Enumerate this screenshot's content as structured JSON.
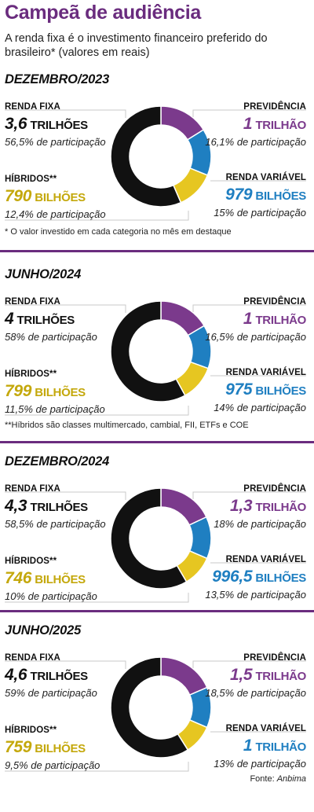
{
  "title": "Campeã de audiência",
  "subtitle": "A renda fixa é o investimento financeiro preferido do brasileiro* (valores em reais)",
  "footnotes": {
    "one": "* O valor investido em cada categoria no mês em destaque",
    "two": "**Híbridos são classes multimercado, cambial, FII, ETFs e COE"
  },
  "source": {
    "prefix": "Fonte:",
    "name": "Anbima"
  },
  "colors": {
    "renda_fixa": "#111111",
    "previdencia": "#7b3a8c",
    "renda_variavel": "#1f7fc1",
    "hibridos": "#e6c621",
    "divider": "#6a2c7e"
  },
  "labels": {
    "renda_fixa": "RENDA FIXA",
    "previdencia": "PREVIDÊNCIA",
    "hibridos": "HÍBRIDOS**",
    "renda_variavel": "RENDA VARIÁVEL"
  },
  "chart_data": [
    {
      "type": "pie",
      "title": "DEZEMBRO/2023",
      "categories": [
        "Previdência",
        "Renda variável",
        "Híbridos",
        "Renda fixa"
      ],
      "values": [
        16.1,
        15,
        12.4,
        56.5
      ],
      "display": {
        "renda_fixa": {
          "num": "3,6",
          "unit": "TRILHÕES",
          "pct": "56,5% de participação"
        },
        "previdencia": {
          "num": "1",
          "unit": "TRILHÃO",
          "pct": "16,1% de participação"
        },
        "hibridos": {
          "num": "790",
          "unit": "BILHÕES",
          "pct": "12,4% de participação"
        },
        "renda_variavel": {
          "num": "979",
          "unit": "BILHÕES",
          "pct": "15% de participação"
        }
      }
    },
    {
      "type": "pie",
      "title": "JUNHO/2024",
      "categories": [
        "Previdência",
        "Renda variável",
        "Híbridos",
        "Renda fixa"
      ],
      "values": [
        16.5,
        14,
        11.5,
        58
      ],
      "display": {
        "renda_fixa": {
          "num": "4",
          "unit": "TRILHÕES",
          "pct": "58% de participação"
        },
        "previdencia": {
          "num": "1",
          "unit": "TRILHÃO",
          "pct": "16,5% de participação"
        },
        "hibridos": {
          "num": "799",
          "unit": "BILHÕES",
          "pct": "11,5% de participação"
        },
        "renda_variavel": {
          "num": "975",
          "unit": "BILHÕES",
          "pct": "14% de participação"
        }
      }
    },
    {
      "type": "pie",
      "title": "DEZEMBRO/2024",
      "categories": [
        "Previdência",
        "Renda variável",
        "Híbridos",
        "Renda fixa"
      ],
      "values": [
        18,
        13.5,
        10,
        58.5
      ],
      "display": {
        "renda_fixa": {
          "num": "4,3",
          "unit": "TRILHÕES",
          "pct": "58,5% de participação"
        },
        "previdencia": {
          "num": "1,3",
          "unit": "TRILHÃO",
          "pct": "18% de participação"
        },
        "hibridos": {
          "num": "746",
          "unit": "BILHÕES",
          "pct": "10% de participação"
        },
        "renda_variavel": {
          "num": "996,5",
          "unit": "BILHÕES",
          "pct": "13,5% de participação"
        }
      }
    },
    {
      "type": "pie",
      "title": "JUNHO/2025",
      "categories": [
        "Previdência",
        "Renda variável",
        "Híbridos",
        "Renda fixa"
      ],
      "values": [
        18.5,
        13,
        9.5,
        59
      ],
      "display": {
        "renda_fixa": {
          "num": "4,6",
          "unit": "TRILHÕES",
          "pct": "59% de participação"
        },
        "previdencia": {
          "num": "1,5",
          "unit": "TRILHÃO",
          "pct": "18,5% de participação"
        },
        "hibridos": {
          "num": "759",
          "unit": "BILHÕES",
          "pct": "9,5% de participação"
        },
        "renda_variavel": {
          "num": "1",
          "unit": "TRILHÃO",
          "pct": "13% de participação"
        }
      }
    }
  ]
}
